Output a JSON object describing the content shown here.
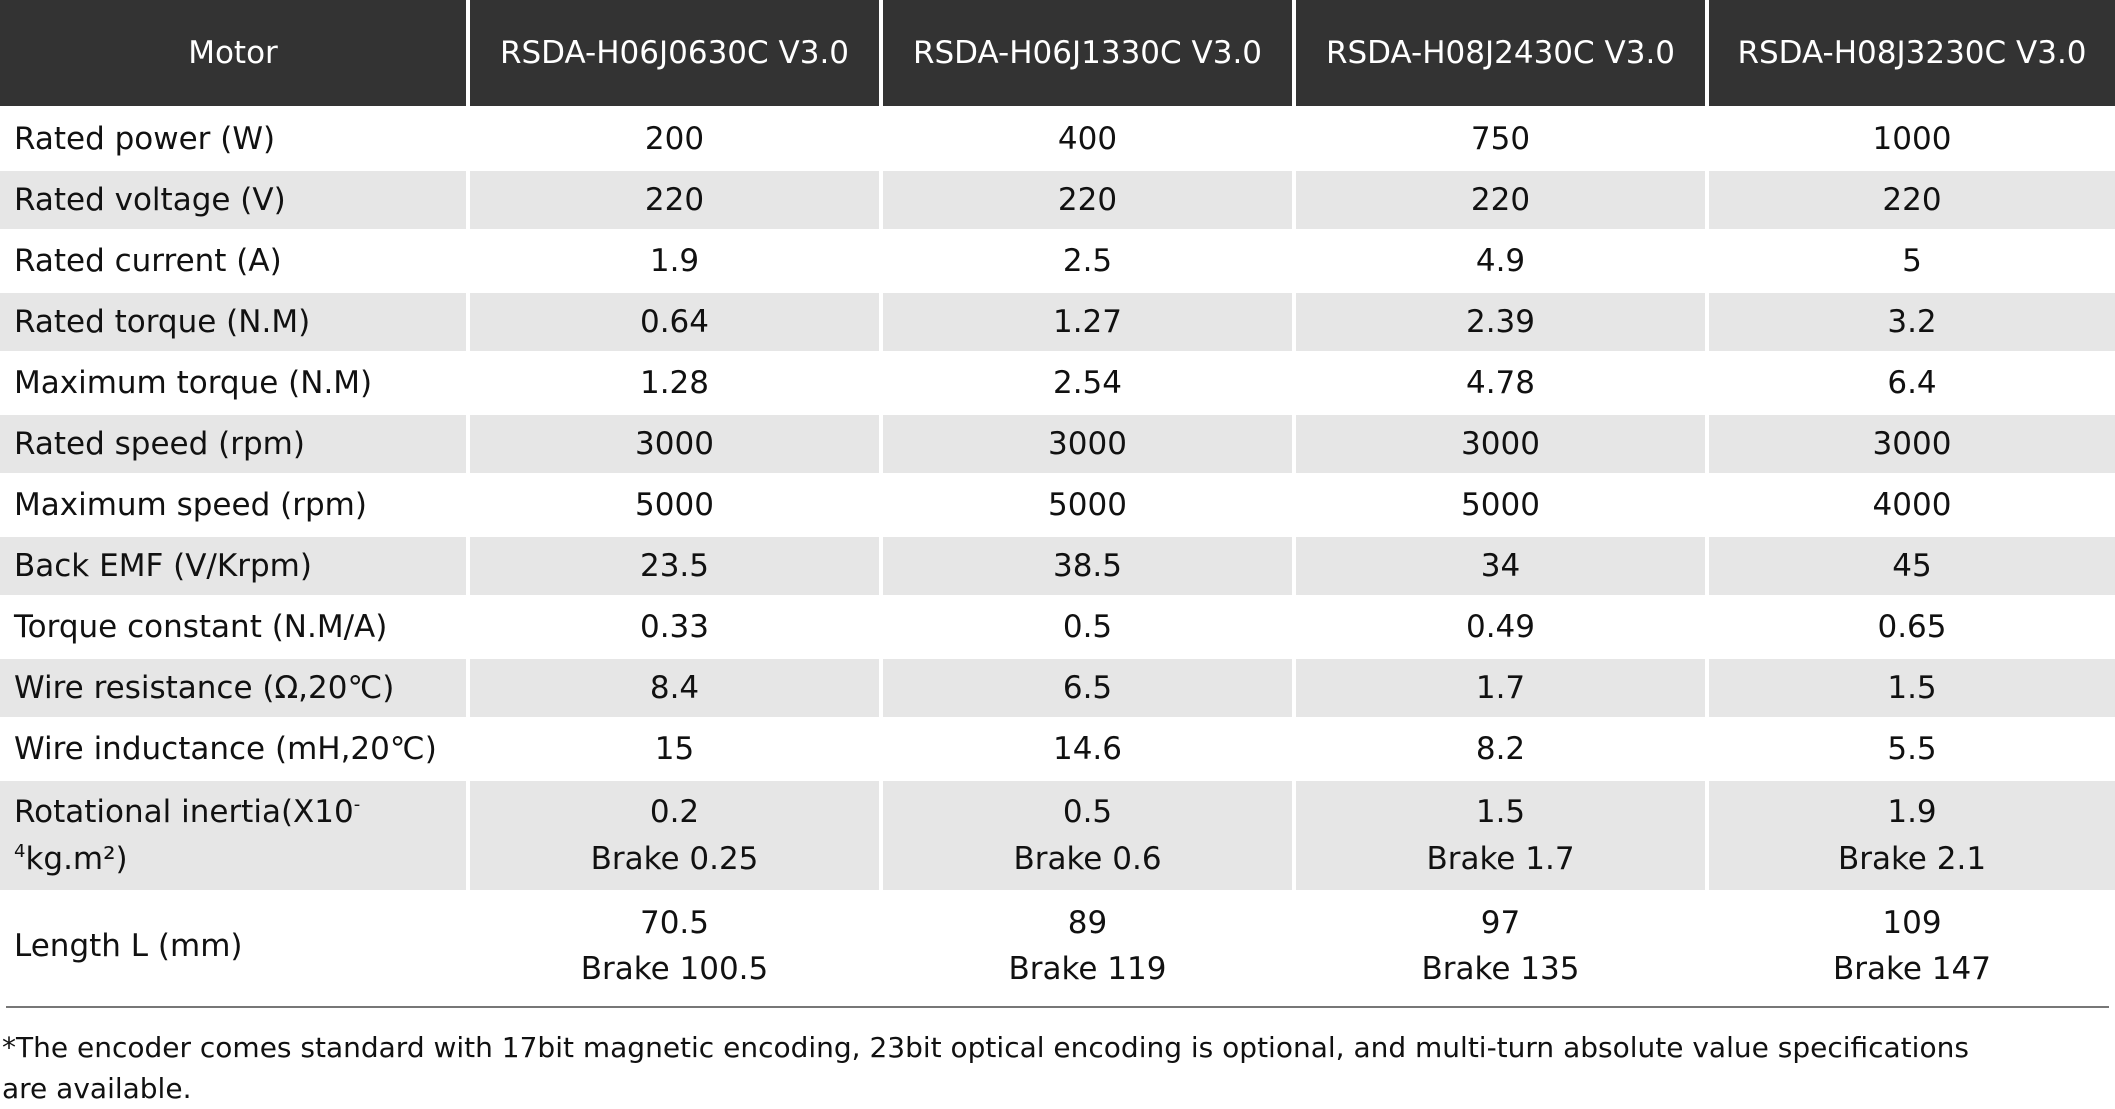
{
  "table": {
    "header": [
      "Motor",
      "RSDA-H06J0630C V3.0",
      "RSDA-H06J1330C V3.0",
      "RSDA-H08J2430C V3.0",
      "RSDA-H08J3230C V3.0"
    ],
    "rows": [
      {
        "label": [
          "Rated power (W)"
        ],
        "values": [
          200,
          400,
          750,
          1000
        ]
      },
      {
        "label": [
          "Rated voltage (V)"
        ],
        "values": [
          220,
          220,
          220,
          220
        ]
      },
      {
        "label": [
          "Rated current (A)"
        ],
        "values": [
          1.9,
          2.5,
          4.9,
          5
        ]
      },
      {
        "label": [
          "Rated torque (N.M)"
        ],
        "values": [
          0.64,
          1.27,
          2.39,
          3.2
        ]
      },
      {
        "label": [
          "Maximum torque (N.M)"
        ],
        "values": [
          1.28,
          2.54,
          4.78,
          6.4
        ]
      },
      {
        "label": [
          "Rated speed (rpm)"
        ],
        "values": [
          3000,
          3000,
          3000,
          3000
        ]
      },
      {
        "label": [
          "Maximum speed (rpm)"
        ],
        "values": [
          5000,
          5000,
          5000,
          4000
        ]
      },
      {
        "label": [
          "Back EMF (V/Krpm)"
        ],
        "values": [
          23.5,
          38.5,
          34,
          45
        ]
      },
      {
        "label": [
          "Torque constant (N.M/A)"
        ],
        "values": [
          0.33,
          0.5,
          0.49,
          0.65
        ]
      },
      {
        "label": [
          "Wire resistance (Ω,20℃)"
        ],
        "values": [
          8.4,
          6.5,
          1.7,
          1.5
        ]
      },
      {
        "label": [
          "Wire inductance (mH,20℃)"
        ],
        "values": [
          15,
          14.6,
          8.2,
          5.5
        ]
      },
      {
        "label": [
          "Rotational inertia(X10",
          "-4",
          "kg.m²)"
        ],
        "values": [
          [
            0.2,
            "Brake 0.25"
          ],
          [
            0.5,
            "Brake 0.6"
          ],
          [
            1.5,
            "Brake 1.7"
          ],
          [
            1.9,
            "Brake 2.1"
          ]
        ]
      },
      {
        "label": [
          "Length L (mm)"
        ],
        "values": [
          [
            70.5,
            "Brake 100.5"
          ],
          [
            89,
            "Brake 119"
          ],
          [
            97,
            "Brake 135"
          ],
          [
            109,
            "Brake 147"
          ]
        ]
      }
    ]
  },
  "footnote": "*The encoder comes standard with 17bit magnetic encoding, 23bit optical encoding is optional, and multi-turn absolute value specifications are available."
}
